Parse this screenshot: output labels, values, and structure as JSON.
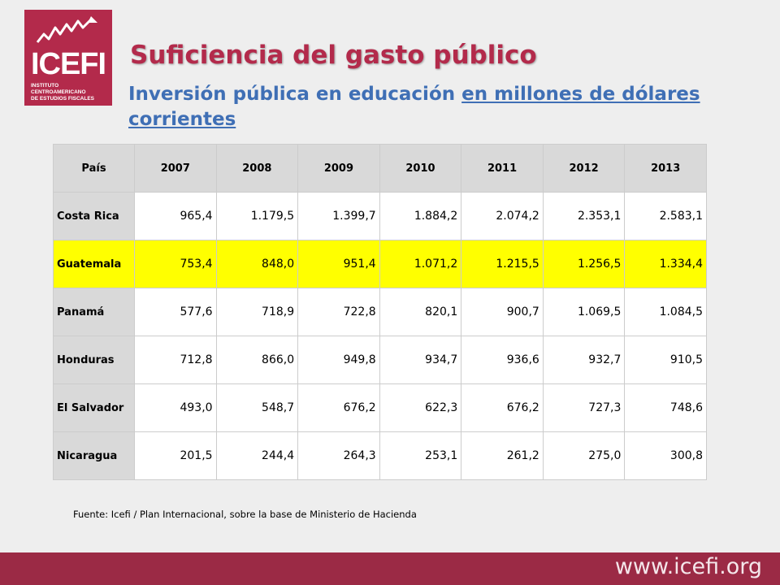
{
  "logo": {
    "name": "ICEFI",
    "subtitle_line1": "INSTITUTO CENTROAMERICANO",
    "subtitle_line2": "DE ESTUDIOS FISCALES"
  },
  "header": {
    "title": "Suficiencia del gasto público",
    "subtitle_plain": "Inversión pública en educación ",
    "subtitle_underlined": "en millones de dólares corrientes"
  },
  "table": {
    "columns": [
      "País",
      "2007",
      "2008",
      "2009",
      "2010",
      "2011",
      "2012",
      "2013"
    ],
    "rows": [
      {
        "country": "Costa Rica",
        "values": [
          "965,4",
          "1.179,5",
          "1.399,7",
          "1.884,2",
          "2.074,2",
          "2.353,1",
          "2.583,1"
        ]
      },
      {
        "country": "Guatemala",
        "highlight": true,
        "values": [
          "753,4",
          "848,0",
          "951,4",
          "1.071,2",
          "1.215,5",
          "1.256,5",
          "1.334,4"
        ]
      },
      {
        "country": "Panamá",
        "values": [
          "577,6",
          "718,9",
          "722,8",
          "820,1",
          "900,7",
          "1.069,5",
          "1.084,5"
        ]
      },
      {
        "country": "Honduras",
        "values": [
          "712,8",
          "866,0",
          "949,8",
          "934,7",
          "936,6",
          "932,7",
          "910,5"
        ]
      },
      {
        "country": "El Salvador",
        "values": [
          "493,0",
          "548,7",
          "676,2",
          "622,3",
          "676,2",
          "727,3",
          "748,6"
        ]
      },
      {
        "country": "Nicaragua",
        "values": [
          "201,5",
          "244,4",
          "264,3",
          "253,1",
          "261,2",
          "275,0",
          "300,8"
        ]
      }
    ]
  },
  "source": "Fuente: Icefi / Plan Internacional, sobre la base de Ministerio de Hacienda",
  "footer": {
    "url": "www.icefi.org"
  },
  "colors": {
    "brand": "#b32a4b",
    "footer": "#9b2a45",
    "subtitle": "#3f6fb5",
    "highlight": "#ffff00",
    "header_cell": "#d9d9d9"
  }
}
